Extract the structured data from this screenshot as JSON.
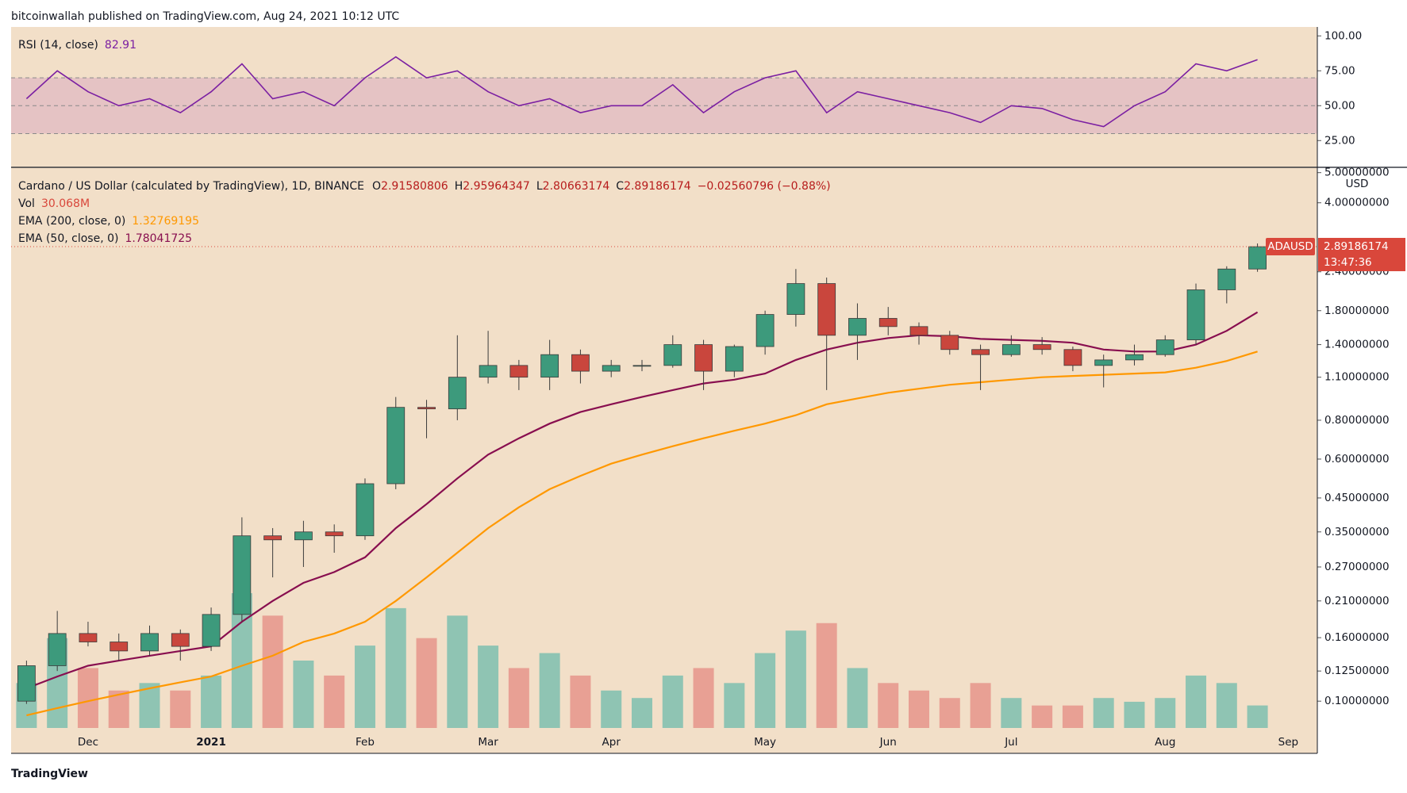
{
  "header": {
    "byline": "bitcoinwallah published on TradingView.com, Aug 24, 2021 10:12 UTC"
  },
  "footer": {
    "brand": "TradingView"
  },
  "chart_data": [
    {
      "type": "line",
      "title": "RSI (14, close)",
      "title_value": 82.91,
      "series": [
        {
          "color": "#7b1fa2",
          "values": [
            55,
            75,
            60,
            50,
            55,
            45,
            60,
            80,
            55,
            60,
            50,
            70,
            85,
            70,
            75,
            60,
            50,
            55,
            45,
            50,
            50,
            65,
            45,
            60,
            70,
            75,
            45,
            60,
            55,
            50,
            45,
            38,
            50,
            48,
            40,
            35,
            50,
            60,
            80,
            75,
            82.91,
            null
          ]
        }
      ],
      "band": {
        "from": 30,
        "to": 70,
        "color": "#9c27b0"
      },
      "hlines": [
        70,
        50,
        30
      ],
      "ylim": [
        6.4,
        106.4
      ],
      "yticks": [
        {
          "value": 100,
          "label": "100.00"
        },
        {
          "value": 75,
          "label": "75.00"
        },
        {
          "value": 50,
          "label": "50.00"
        },
        {
          "value": 25,
          "label": "25.00"
        }
      ]
    },
    {
      "type": "candlestick",
      "title": "Cardano / US Dollar (calculated by TradingView), 1D, BINANCE",
      "ohlc_legend": [
        {
          "label": "O",
          "value": 2.91580806
        },
        {
          "label": "H",
          "value": 2.95964347
        },
        {
          "label": "L",
          "value": 2.80663174
        },
        {
          "label": "C",
          "value": 2.89186174
        }
      ],
      "change": "−0.02560796 (−0.88%)",
      "categories": [
        null,
        null,
        "Dec",
        null,
        null,
        null,
        "2021",
        null,
        null,
        null,
        null,
        "Feb",
        null,
        null,
        null,
        "Mar",
        null,
        null,
        null,
        "Apr",
        null,
        null,
        null,
        null,
        "May",
        null,
        null,
        null,
        "Jun",
        null,
        null,
        null,
        "Jul",
        null,
        null,
        null,
        null,
        "Aug",
        null,
        null,
        null,
        "Sep"
      ],
      "open": [
        0.1,
        0.13,
        0.165,
        0.155,
        0.145,
        0.165,
        0.15,
        0.19,
        0.34,
        0.33,
        0.35,
        0.34,
        0.5,
        0.88,
        0.87,
        1.1,
        1.2,
        1.1,
        1.3,
        1.15,
        1.2,
        1.2,
        1.4,
        1.15,
        1.38,
        1.75,
        2.2,
        1.5,
        1.7,
        1.6,
        1.5,
        1.35,
        1.3,
        1.4,
        1.35,
        1.2,
        1.25,
        1.3,
        1.45,
        2.1,
        2.45,
        null
      ],
      "high": [
        0.135,
        0.195,
        0.18,
        0.165,
        0.175,
        0.17,
        0.2,
        0.39,
        0.36,
        0.38,
        0.37,
        0.52,
        0.95,
        0.93,
        1.5,
        1.55,
        1.25,
        1.45,
        1.35,
        1.25,
        1.25,
        1.5,
        1.45,
        1.4,
        1.8,
        2.45,
        2.3,
        1.9,
        1.85,
        1.65,
        1.55,
        1.4,
        1.5,
        1.48,
        1.38,
        1.3,
        1.4,
        1.5,
        2.2,
        2.5,
        2.96,
        null
      ],
      "low": [
        0.098,
        0.125,
        0.15,
        0.135,
        0.14,
        0.135,
        0.145,
        0.18,
        0.25,
        0.27,
        0.3,
        0.33,
        0.48,
        0.7,
        0.8,
        1.05,
        1.0,
        1.0,
        1.05,
        1.1,
        1.15,
        1.18,
        1.0,
        1.1,
        1.3,
        1.6,
        1.0,
        1.25,
        1.5,
        1.4,
        1.3,
        1.0,
        1.28,
        1.3,
        1.15,
        1.02,
        1.2,
        1.28,
        1.4,
        1.9,
        2.4,
        null
      ],
      "close": [
        0.13,
        0.165,
        0.155,
        0.145,
        0.165,
        0.15,
        0.19,
        0.34,
        0.33,
        0.35,
        0.34,
        0.5,
        0.88,
        0.87,
        1.1,
        1.2,
        1.1,
        1.3,
        1.15,
        1.2,
        1.2,
        1.4,
        1.15,
        1.38,
        1.75,
        2.2,
        1.5,
        1.7,
        1.6,
        1.5,
        1.35,
        1.3,
        1.4,
        1.35,
        1.2,
        1.25,
        1.3,
        1.45,
        2.1,
        2.45,
        2.89,
        null
      ],
      "up_color": "#3d9a7c",
      "down_color": "#c9463d",
      "wick_color": "#3b3b3b",
      "volume": {
        "name": "Vol",
        "value_label": "30.068M",
        "up_color": "#8fc4b3",
        "down_color": "#e8a094",
        "values": [
          60,
          120,
          80,
          50,
          60,
          50,
          70,
          180,
          150,
          90,
          70,
          110,
          160,
          120,
          150,
          110,
          80,
          100,
          70,
          50,
          40,
          70,
          80,
          60,
          100,
          130,
          140,
          80,
          60,
          50,
          40,
          60,
          40,
          30,
          30,
          40,
          35,
          40,
          70,
          60,
          30.068,
          null
        ]
      },
      "series": [
        {
          "name": "EMA (200, close, 0)",
          "last_value": 1.32769195,
          "color": "#ff9800",
          "values": [
            0.09,
            0.095,
            0.1,
            0.105,
            0.11,
            0.115,
            0.12,
            0.13,
            0.14,
            0.155,
            0.165,
            0.18,
            0.21,
            0.25,
            0.3,
            0.36,
            0.42,
            0.48,
            0.53,
            0.58,
            0.62,
            0.66,
            0.7,
            0.74,
            0.78,
            0.83,
            0.9,
            0.94,
            0.98,
            1.01,
            1.04,
            1.06,
            1.08,
            1.1,
            1.11,
            1.12,
            1.13,
            1.14,
            1.18,
            1.24,
            1.33,
            null
          ]
        },
        {
          "name": "EMA (50, close, 0)",
          "last_value": 1.78041725,
          "color": "#880e4f",
          "values": [
            0.11,
            0.12,
            0.13,
            0.135,
            0.14,
            0.145,
            0.15,
            0.18,
            0.21,
            0.24,
            0.26,
            0.29,
            0.36,
            0.43,
            0.52,
            0.62,
            0.7,
            0.78,
            0.85,
            0.9,
            0.95,
            1.0,
            1.05,
            1.08,
            1.13,
            1.25,
            1.35,
            1.42,
            1.47,
            1.5,
            1.49,
            1.46,
            1.45,
            1.44,
            1.42,
            1.35,
            1.33,
            1.33,
            1.4,
            1.55,
            1.78,
            null
          ]
        }
      ],
      "log_scale": true,
      "unit": "USD",
      "symbol": "ADAUSD",
      "last_price": 2.89186174,
      "countdown": "13:47:36",
      "price_color": "#d9473b",
      "ylim": [
        0.082,
        5.17
      ],
      "yticks": [
        {
          "value": 5,
          "label": "5.00000000"
        },
        {
          "value": 4,
          "label": "4.00000000"
        },
        {
          "value": 2.4,
          "label": "2.40000000"
        },
        {
          "value": 1.8,
          "label": "1.80000000"
        },
        {
          "value": 1.4,
          "label": "1.40000000"
        },
        {
          "value": 1.1,
          "label": "1.10000000"
        },
        {
          "value": 0.8,
          "label": "0.80000000"
        },
        {
          "value": 0.6,
          "label": "0.60000000"
        },
        {
          "value": 0.45,
          "label": "0.45000000"
        },
        {
          "value": 0.35,
          "label": "0.35000000"
        },
        {
          "value": 0.27,
          "label": "0.27000000"
        },
        {
          "value": 0.21,
          "label": "0.21000000"
        },
        {
          "value": 0.16,
          "label": "0.16000000"
        },
        {
          "value": 0.125,
          "label": "0.12500000"
        },
        {
          "value": 0.1,
          "label": "0.10000000"
        }
      ]
    }
  ]
}
